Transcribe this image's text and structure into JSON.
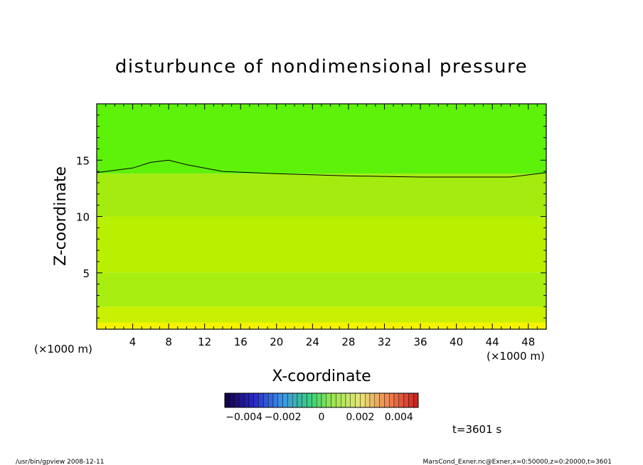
{
  "chart_data": {
    "type": "heatmap",
    "title": "disturbunce of nondimensional pressure",
    "xlabel": "X-coordinate",
    "ylabel": "Z-coordinate",
    "x_unit_left": "(×1000 m)",
    "x_unit_right": "(×1000 m)",
    "xlim": [
      0,
      50
    ],
    "ylim": [
      0,
      20
    ],
    "x_ticks": [
      "4",
      "8",
      "12",
      "16",
      "20",
      "24",
      "28",
      "32",
      "36",
      "40",
      "44",
      "48"
    ],
    "x_tick_values": [
      4,
      8,
      12,
      16,
      20,
      24,
      28,
      32,
      36,
      40,
      44,
      48
    ],
    "y_ticks": [
      "5",
      "10",
      "15"
    ],
    "y_tick_values": [
      5,
      10,
      15
    ],
    "colorbar": {
      "min": -0.005,
      "max": 0.005,
      "labels": [
        "−0.004",
        "−0.002",
        "0",
        "0.002",
        "0.004"
      ],
      "label_values": [
        -0.004,
        -0.002,
        0,
        0.002,
        0.004
      ]
    },
    "field_bands": [
      {
        "z_from": 0,
        "z_to": 0.6,
        "color": "#f5f200"
      },
      {
        "z_from": 0.6,
        "z_to": 2,
        "color": "#c8f000"
      },
      {
        "z_from": 2,
        "z_to": 5,
        "color": "#a8ee10"
      },
      {
        "z_from": 5,
        "z_to": 10,
        "color": "#b8f000"
      },
      {
        "z_from": 10,
        "z_to": 13.8,
        "color": "#a4ec10"
      },
      {
        "z_from": 13.8,
        "z_to": 20,
        "color": "#5ef20a"
      }
    ],
    "contour_line": {
      "x": [
        0,
        4,
        6,
        8,
        10,
        14,
        20,
        28,
        36,
        42,
        46,
        50
      ],
      "z": [
        13.9,
        14.3,
        14.8,
        15.0,
        14.6,
        14.0,
        13.8,
        13.6,
        13.5,
        13.5,
        13.5,
        13.9
      ]
    },
    "time_label": "t=3601 s",
    "footer_left": "/usr/bin/gpview   2008-12-11",
    "footer_right": "MarsCond_Exner.nc@Exner,x=0:50000,z=0:20000,t=3601"
  }
}
